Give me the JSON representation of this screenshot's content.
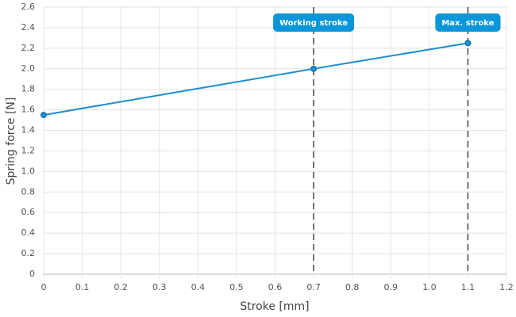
{
  "chart_data": {
    "type": "line",
    "x": [
      0,
      0.7,
      1.1
    ],
    "series": [
      {
        "name": "Spring force",
        "color": "#1a90d2",
        "values": [
          1.55,
          2.0,
          2.25
        ]
      }
    ],
    "x_label": "Stroke [mm]",
    "y_label": "Spring force [N]",
    "xlim": [
      0,
      1.2
    ],
    "ylim": [
      0,
      2.6
    ],
    "xticks": [
      0,
      0.1,
      0.2,
      0.3,
      0.4,
      0.5,
      0.6,
      0.7,
      0.8,
      0.9,
      {
        "value": 1,
        "label": "1.0"
      },
      1.1,
      1.2
    ],
    "yticks": [
      0,
      0.2,
      0.4,
      0.6,
      0.8,
      {
        "value": 1,
        "label": "1.0"
      },
      1.2,
      1.4,
      1.6,
      1.8,
      {
        "value": 2,
        "label": "2.0"
      },
      2.2,
      2.4,
      2.6
    ],
    "grid": true,
    "annotations": [
      {
        "x": 0.7,
        "label": "Working stroke"
      },
      {
        "x": 1.1,
        "label": "Max. stroke"
      }
    ]
  }
}
